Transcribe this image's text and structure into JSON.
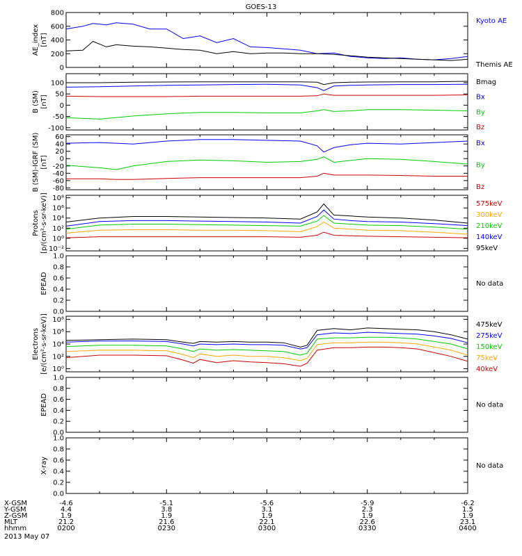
{
  "title": "GOES-13",
  "date_label": "2013 May 07",
  "colors": {
    "black": "#000000",
    "blue": "#0000ff",
    "green": "#00cc00",
    "red": "#cc0000",
    "orange": "#ffa500"
  },
  "chart_data": [
    {
      "type": "line",
      "id": "ae",
      "ylabel": "AE_index\n[nT]",
      "scale": "linear",
      "ylim": [
        0,
        800
      ],
      "yticks": [
        0,
        200,
        400,
        600,
        800
      ],
      "yticklabels": [
        "0",
        "200",
        "400",
        "600",
        "800"
      ],
      "x": [
        0,
        5,
        8,
        12,
        15,
        20,
        25,
        30,
        35,
        40,
        45,
        50,
        55,
        60,
        65,
        70,
        75,
        80,
        85,
        90,
        95,
        100,
        105,
        110,
        115,
        120
      ],
      "series": [
        {
          "name": "Kyoto AE",
          "color": "blue",
          "values": [
            560,
            600,
            640,
            620,
            650,
            630,
            560,
            560,
            420,
            460,
            360,
            420,
            300,
            290,
            270,
            250,
            200,
            210,
            160,
            140,
            130,
            140,
            120,
            110,
            130,
            160
          ]
        },
        {
          "name": "Themis AE",
          "color": "black",
          "values": [
            240,
            250,
            380,
            300,
            330,
            310,
            300,
            280,
            260,
            250,
            200,
            230,
            200,
            210,
            210,
            200,
            200,
            190,
            170,
            150,
            140,
            130,
            120,
            110,
            100,
            120
          ]
        }
      ]
    },
    {
      "type": "line",
      "id": "bsm",
      "ylabel": "B (SM)\n[nT]",
      "scale": "linear",
      "ylim": [
        -110,
        140
      ],
      "yticks": [
        -100,
        -50,
        0,
        50,
        100
      ],
      "yticklabels": [
        "-100",
        "-50",
        "0",
        "50",
        "100"
      ],
      "x": [
        0,
        10,
        20,
        30,
        40,
        50,
        60,
        70,
        75,
        77,
        80,
        85,
        90,
        100,
        110,
        120
      ],
      "series": [
        {
          "name": "Bmag",
          "color": "black",
          "values": [
            100,
            100,
            102,
            103,
            104,
            104,
            104,
            104,
            102,
            92,
            100,
            102,
            103,
            104,
            104,
            106
          ]
        },
        {
          "name": "Bx",
          "color": "blue",
          "values": [
            80,
            82,
            85,
            88,
            90,
            92,
            93,
            90,
            78,
            65,
            85,
            88,
            90,
            92,
            92,
            93
          ]
        },
        {
          "name": "By",
          "color": "green",
          "values": [
            -55,
            -62,
            -48,
            -38,
            -32,
            -32,
            -34,
            -34,
            -25,
            -20,
            -28,
            -25,
            -20,
            -20,
            -22,
            -25
          ]
        },
        {
          "name": "Bz",
          "color": "red",
          "values": [
            40,
            38,
            38,
            38,
            40,
            40,
            40,
            40,
            42,
            50,
            44,
            44,
            44,
            44,
            44,
            46
          ]
        }
      ]
    },
    {
      "type": "line",
      "id": "bigrf",
      "ylabel": "B (SM)-IGRF (SM)\n[nT]",
      "scale": "linear",
      "ylim": [
        -85,
        65
      ],
      "yticks": [
        -80,
        -60,
        -40,
        -20,
        0,
        20,
        40,
        60
      ],
      "yticklabels": [
        "-80",
        "-60",
        "-40",
        "-20",
        "0",
        "20",
        "40",
        "60"
      ],
      "x": [
        0,
        10,
        15,
        20,
        30,
        40,
        50,
        60,
        70,
        75,
        77,
        80,
        85,
        90,
        100,
        110,
        120
      ],
      "series": [
        {
          "name": "Bx",
          "color": "blue",
          "values": [
            42,
            44,
            42,
            40,
            48,
            52,
            52,
            50,
            48,
            35,
            18,
            30,
            38,
            42,
            40,
            44,
            48
          ]
        },
        {
          "name": "By",
          "color": "green",
          "values": [
            -18,
            -25,
            -30,
            -20,
            -8,
            -4,
            -6,
            -10,
            -8,
            -2,
            5,
            -10,
            -5,
            0,
            -2,
            -8,
            -15
          ]
        },
        {
          "name": "Bz",
          "color": "red",
          "values": [
            -55,
            -55,
            -57,
            -57,
            -54,
            -52,
            -52,
            -52,
            -52,
            -48,
            -40,
            -45,
            -45,
            -45,
            -46,
            -48,
            -48
          ]
        }
      ]
    },
    {
      "type": "line",
      "id": "protons",
      "ylabel": "Protons\n[p/(cm²-s-sr-keV)]",
      "scale": "log",
      "ylim": [
        -2.5,
        8.5
      ],
      "yticks": [
        -2,
        0,
        2,
        4,
        6,
        8
      ],
      "yticklabels": [
        "10⁻²",
        "10⁰",
        "10²",
        "10⁴",
        "10⁶",
        "10⁸"
      ],
      "x": [
        0,
        10,
        20,
        30,
        40,
        50,
        60,
        70,
        75,
        77,
        80,
        85,
        90,
        100,
        110,
        120
      ],
      "series": [
        {
          "name": "575keV",
          "color": "red",
          "values": [
            0.1,
            0.3,
            0.3,
            0.3,
            0.3,
            0.3,
            0.3,
            0.2,
            0.6,
            1.2,
            0.6,
            0.5,
            0.4,
            0.3,
            0.2,
            0.1
          ]
        },
        {
          "name": "300keV",
          "color": "orange",
          "values": [
            1,
            1.6,
            1.7,
            1.7,
            1.6,
            1.6,
            1.5,
            1.3,
            2.3,
            3.2,
            2.0,
            1.8,
            1.6,
            1.5,
            1.2,
            0.8
          ]
        },
        {
          "name": "210keV",
          "color": "green",
          "values": [
            1.8,
            2.6,
            2.8,
            2.8,
            2.7,
            2.6,
            2.5,
            2.4,
            3.4,
            4.5,
            3.0,
            2.8,
            2.6,
            2.5,
            2.2,
            1.8
          ]
        },
        {
          "name": "140keV",
          "color": "blue",
          "values": [
            2.4,
            3.3,
            3.5,
            3.5,
            3.4,
            3.3,
            3.2,
            3.0,
            4.3,
            5.6,
            3.8,
            3.5,
            3.3,
            3.2,
            2.9,
            2.5
          ]
        },
        {
          "name": "95keV",
          "color": "black",
          "values": [
            3.2,
            4.0,
            4.3,
            4.3,
            4.2,
            4.1,
            4.0,
            3.8,
            5.2,
            6.8,
            4.6,
            4.4,
            4.2,
            4.0,
            3.6,
            3.0
          ]
        }
      ]
    },
    {
      "type": "line",
      "id": "epead1",
      "ylabel": "EPEAD",
      "nodata": "No data",
      "scale": "linear",
      "ylim": [
        0,
        1
      ],
      "yticks": [
        0,
        0.2,
        0.4,
        0.6,
        0.8,
        1.0
      ],
      "yticklabels": [
        "0.0",
        "0.2",
        "0.4",
        "0.6",
        "0.8",
        "1.0"
      ],
      "x": [],
      "series": []
    },
    {
      "type": "line",
      "id": "electrons",
      "ylabel": "Electrons\n[e/(cm²-s-sr-keV)]",
      "scale": "log",
      "ylim": [
        -0.5,
        8.5
      ],
      "yticks": [
        0,
        2,
        4,
        6,
        8
      ],
      "yticklabels": [
        "10⁰",
        "10²",
        "10⁴",
        "10⁶",
        "10⁸"
      ],
      "x": [
        0,
        10,
        20,
        30,
        35,
        38,
        40,
        45,
        50,
        55,
        60,
        65,
        70,
        72,
        75,
        80,
        85,
        90,
        95,
        100,
        105,
        110,
        115,
        120
      ],
      "series": [
        {
          "name": "475keV",
          "color": "black",
          "values": [
            4.6,
            4.7,
            4.8,
            4.7,
            4.3,
            4.1,
            4.4,
            4.3,
            4.4,
            4.3,
            4.3,
            4.2,
            3.5,
            3.8,
            6.2,
            6.5,
            6.3,
            6.6,
            6.5,
            6.4,
            6.3,
            6.0,
            5.5,
            4.8
          ]
        },
        {
          "name": "275keV",
          "color": "blue",
          "values": [
            4.3,
            4.5,
            4.5,
            4.4,
            4.0,
            3.7,
            4.0,
            3.9,
            4.0,
            3.9,
            3.9,
            3.8,
            3.2,
            3.4,
            5.5,
            5.8,
            5.7,
            5.9,
            5.8,
            5.7,
            5.6,
            5.3,
            4.9,
            4.2
          ]
        },
        {
          "name": "150keV",
          "color": "green",
          "values": [
            3.6,
            3.8,
            3.8,
            3.7,
            3.2,
            2.8,
            3.2,
            3.0,
            3.1,
            3.0,
            2.9,
            2.8,
            2.2,
            2.5,
            4.8,
            5.0,
            5.0,
            5.1,
            5.1,
            5.0,
            4.8,
            4.4,
            4.0,
            3.2
          ]
        },
        {
          "name": "75keV",
          "color": "orange",
          "values": [
            2.8,
            3.0,
            3.0,
            2.9,
            2.3,
            1.8,
            2.4,
            2.0,
            2.2,
            2.0,
            2.0,
            1.8,
            1.3,
            1.7,
            3.9,
            4.2,
            4.2,
            4.3,
            4.3,
            4.2,
            4.0,
            3.5,
            3.0,
            2.2
          ]
        },
        {
          "name": "40keV",
          "color": "red",
          "values": [
            1.8,
            2.2,
            2.2,
            2.1,
            1.4,
            0.9,
            1.5,
            1.0,
            1.3,
            1.1,
            1.0,
            0.8,
            0.4,
            0.9,
            3.0,
            3.4,
            3.4,
            3.5,
            3.5,
            3.4,
            3.2,
            2.6,
            2.0,
            1.2
          ]
        }
      ]
    },
    {
      "type": "line",
      "id": "epead2",
      "ylabel": "EPEAD",
      "nodata": "No data",
      "scale": "linear",
      "ylim": [
        0,
        1
      ],
      "yticks": [
        0,
        0.2,
        0.4,
        0.6,
        0.8,
        1.0
      ],
      "yticklabels": [
        "0.0",
        "0.2",
        "0.4",
        "0.6",
        "0.8",
        "1.0"
      ],
      "x": [],
      "series": []
    },
    {
      "type": "line",
      "id": "xray",
      "ylabel": "X-ray",
      "nodata": "No data",
      "scale": "linear",
      "ylim": [
        0,
        1
      ],
      "yticks": [
        0,
        0.2,
        0.4,
        0.6,
        0.8,
        1.0
      ],
      "yticklabels": [
        "0.0",
        "0.2",
        "0.4",
        "0.6",
        "0.8",
        "1.0"
      ],
      "x": [],
      "series": []
    }
  ],
  "ephemeris": {
    "row_labels": [
      "X-GSM",
      "Y-GSM",
      "Z-GSM",
      "MLT",
      "hhmm"
    ],
    "columns": [
      [
        "-4.6",
        "4.4",
        "1.9",
        "21.2",
        "0200"
      ],
      [
        "-5.1",
        "3.8",
        "1.9",
        "21.6",
        "0230"
      ],
      [
        "-5.6",
        "3.1",
        "1.9",
        "22.1",
        "0300"
      ],
      [
        "-5.9",
        "2.3",
        "1.9",
        "22.6",
        "0330"
      ],
      [
        "-6.2",
        "1.5",
        "1.9",
        "23.1",
        "0400"
      ]
    ]
  }
}
